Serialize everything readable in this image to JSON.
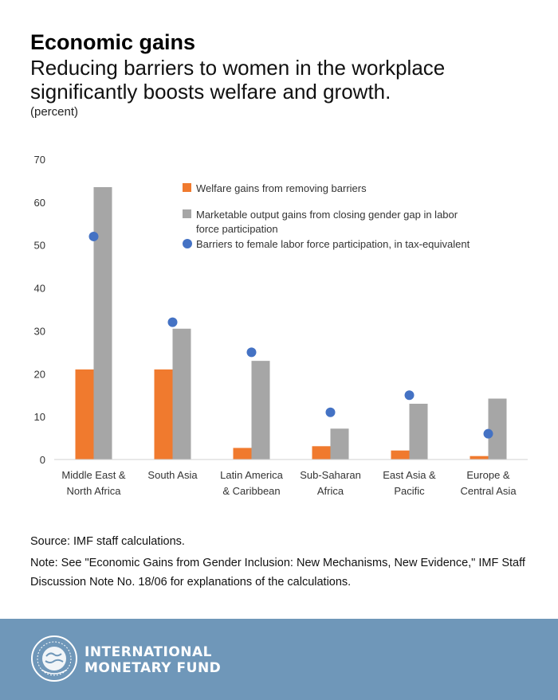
{
  "header": {
    "title": "Economic gains",
    "subtitle": "Reducing barriers to women in the workplace significantly boosts welfare and growth.",
    "unit": "(percent)"
  },
  "chart_data": {
    "type": "bar",
    "categories": [
      [
        "Middle East &",
        "North Africa"
      ],
      [
        "South Asia"
      ],
      [
        "Latin America",
        "& Caribbean"
      ],
      [
        "Sub-Saharan",
        "Africa"
      ],
      [
        "East Asia &",
        "Pacific"
      ],
      [
        "Europe &",
        "Central Asia"
      ]
    ],
    "series": [
      {
        "name": "Welfare gains from removing barriers",
        "kind": "bar",
        "color": "#f07a2e",
        "values": [
          21,
          21,
          2.7,
          3.1,
          2.1,
          0.8
        ]
      },
      {
        "name": "Marketable output gains from closing gender gap in labor force participation",
        "kind": "bar",
        "color": "#a6a6a6",
        "values": [
          63.5,
          30.5,
          23,
          7.2,
          13,
          14.2
        ]
      },
      {
        "name": "Barriers to female labor force participation, in tax-equivalent",
        "kind": "dot",
        "color": "#4472c4",
        "values": [
          52,
          32,
          25,
          11,
          15,
          6
        ]
      }
    ],
    "yticks": [
      0,
      10,
      20,
      30,
      40,
      50,
      60,
      70
    ],
    "ylim": [
      0,
      70
    ],
    "grid": false,
    "legend_position": "top-right"
  },
  "notes": {
    "source": "Source: IMF staff calculations.",
    "note": "Note: See \"Economic Gains from Gender Inclusion: New Mechanisms, New Evidence,\" IMF Staff Discussion Note No. 18/06 for explanations of the calculations."
  },
  "footer": {
    "org_line1": "INTERNATIONAL",
    "org_line2": "MONETARY FUND",
    "logo_icon": "imf-seal-icon",
    "background": "#6f97b9"
  }
}
